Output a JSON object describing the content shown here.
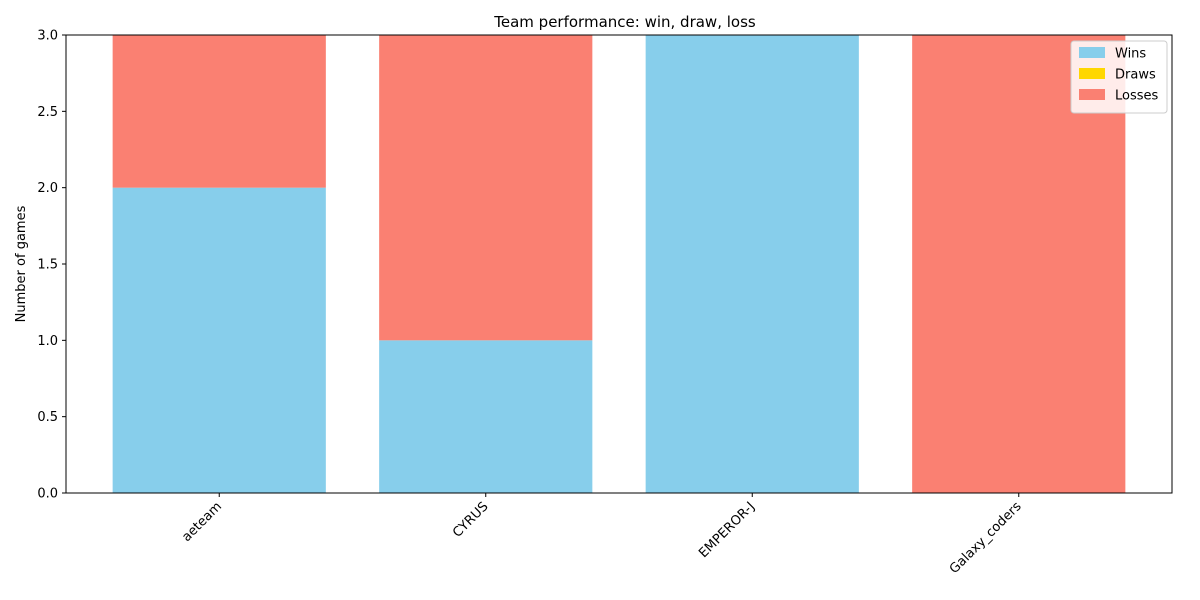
{
  "chart_data": {
    "type": "bar",
    "stacked": true,
    "title": "Team performance: win, draw, loss",
    "xlabel": "",
    "ylabel": "Number of games",
    "categories": [
      "aeteam",
      "CYRUS",
      "EMPEROR-J",
      "Galaxy_coders"
    ],
    "series": [
      {
        "name": "Wins",
        "color": "#87CEEB",
        "values": [
          2,
          1,
          3,
          0
        ]
      },
      {
        "name": "Draws",
        "color": "#FFD700",
        "values": [
          0,
          0,
          0,
          0
        ]
      },
      {
        "name": "Losses",
        "color": "#FA8072",
        "values": [
          1,
          2,
          0,
          3
        ]
      }
    ],
    "ylim": [
      0,
      3
    ],
    "yticks": [
      "0.0",
      "0.5",
      "1.0",
      "1.5",
      "2.0",
      "2.5",
      "3.0"
    ],
    "grid": false,
    "legend_position": "top-right",
    "xtick_rotation": "45 degrees"
  }
}
